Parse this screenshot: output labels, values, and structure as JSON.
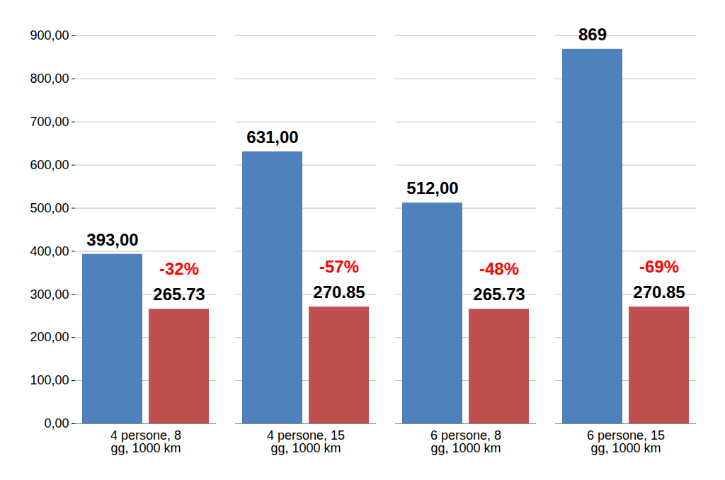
{
  "chart_data": {
    "type": "bar",
    "categories": [
      "4 persone, 8 gg, 1000 km",
      "4 persone, 15 gg, 1000 km",
      "6 persone, 8 gg, 1000 km",
      "6 persone, 15 gg, 1000 km"
    ],
    "series": [
      {
        "color": "#4f81bd",
        "values": [
          393,
          631,
          512,
          869
        ],
        "value_labels": [
          "393,00",
          "631,00",
          "512,00",
          "869"
        ]
      },
      {
        "color": "#c0504d",
        "values": [
          265.73,
          270.85,
          265.73,
          270.85
        ]
      }
    ],
    "annotations": [
      "-32%",
      "-57%",
      "-48%",
      "-69%"
    ],
    "ylim": [
      0,
      900
    ],
    "yticks": [
      {
        "value": 0,
        "label": "0,00"
      },
      {
        "value": 100,
        "label": "100,00"
      },
      {
        "value": 200,
        "label": "200,00"
      },
      {
        "value": 300,
        "label": "300,00"
      },
      {
        "value": 400,
        "label": "400,00"
      },
      {
        "value": 500,
        "label": "500,00"
      },
      {
        "value": 600,
        "label": "600,00"
      },
      {
        "value": 700,
        "label": "700,00"
      },
      {
        "value": 800,
        "label": "800,00"
      },
      {
        "value": 900,
        "label": "900,00"
      }
    ],
    "grid": true,
    "data_labels": true
  }
}
